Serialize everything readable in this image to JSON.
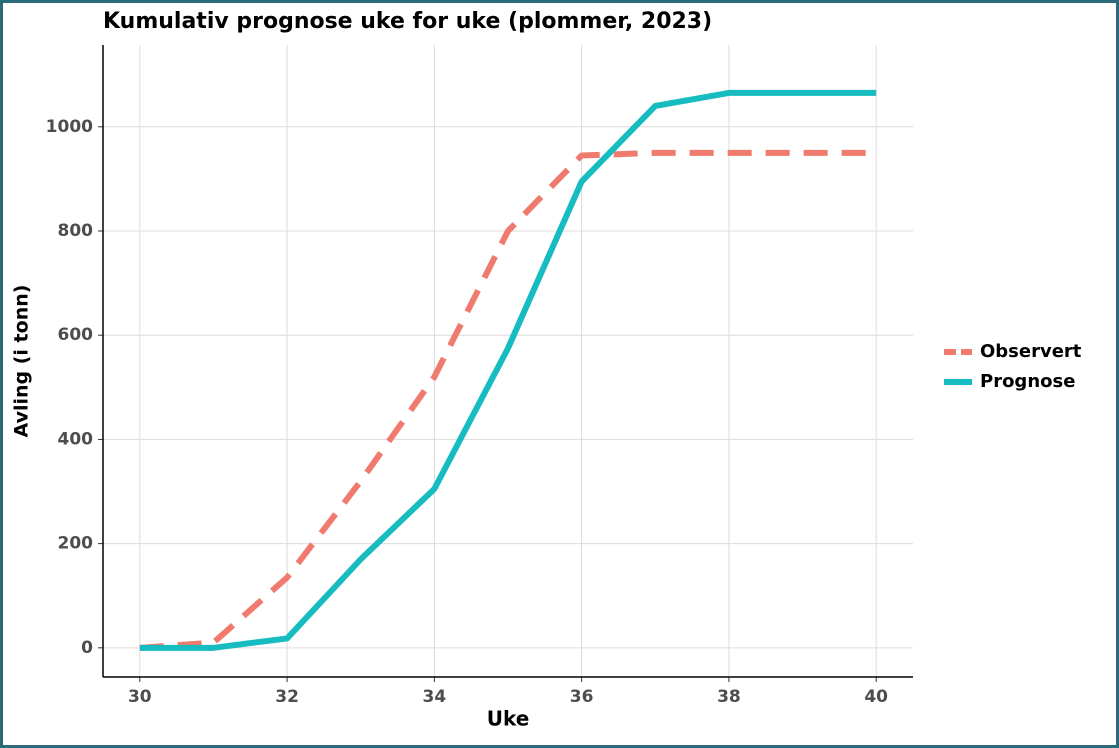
{
  "chart_data": {
    "type": "line",
    "title": "Kumulativ prognose uke for uke (plommer, 2023)",
    "x_label": "Uke",
    "y_label": "Avling (i tonn)",
    "x": [
      30,
      31,
      32,
      33,
      34,
      35,
      36,
      37,
      38,
      39,
      40
    ],
    "series": [
      {
        "name": "Observert",
        "color": "#f07a6e",
        "dashed": true,
        "values": [
          0,
          10,
          135,
          320,
          520,
          800,
          945,
          950,
          950,
          950,
          950
        ]
      },
      {
        "name": "Prognose",
        "color": "#17bcc0",
        "dashed": false,
        "values": [
          0,
          0,
          18,
          170,
          305,
          575,
          895,
          1040,
          1065,
          1065,
          1065
        ]
      }
    ],
    "xlim": [
      29.5,
      40.5
    ],
    "xticks": [
      30,
      32,
      34,
      36,
      38,
      40
    ],
    "ylim": [
      -56,
      1157
    ],
    "yticks": [
      0,
      200,
      400,
      600,
      800,
      1000
    ],
    "grid": true,
    "legend": "right"
  }
}
